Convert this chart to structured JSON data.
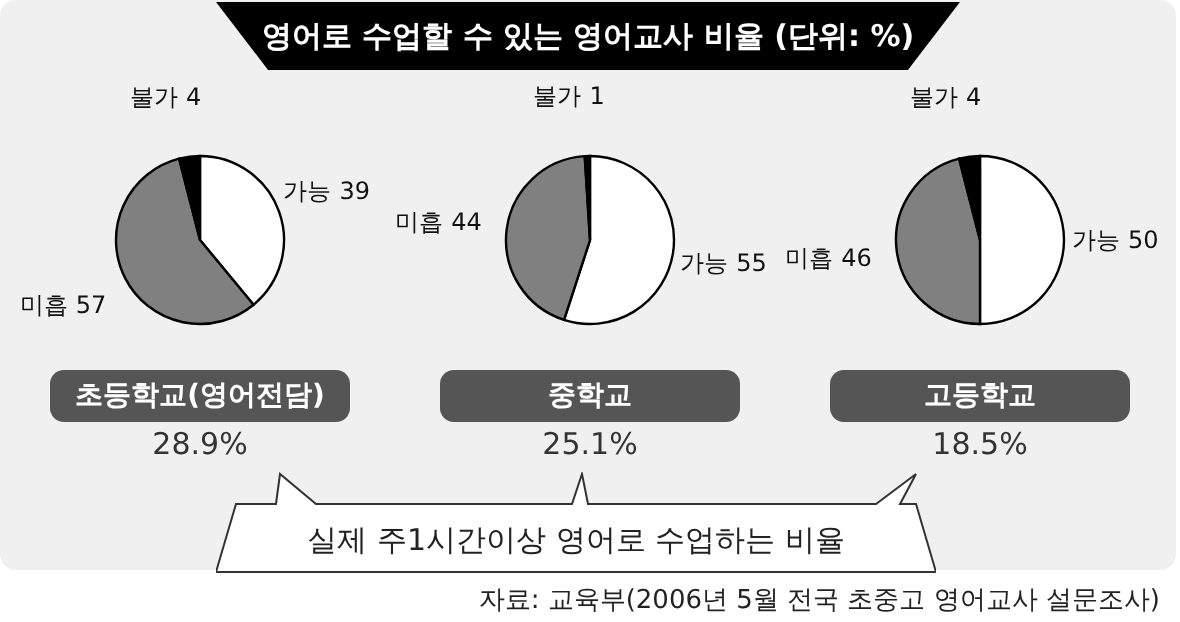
{
  "chart_data": [
    {
      "type": "other",
      "title": "영어로 수업할 수 있는 영어교사 비율 (단위: %)",
      "annotations": [
        "실제 주1시간이상 영어로 수업하는 비율",
        "자료: 교육부(2006년 5월 전국 초중고 영어교사 설문조사)"
      ]
    },
    {
      "type": "pie",
      "subtitle": "초등학교(영어전담)",
      "categories": [
        "가능",
        "미흡",
        "불가"
      ],
      "values": [
        39,
        57,
        4
      ],
      "colors": [
        "#ffffff",
        "#808080",
        "#000000"
      ],
      "data_labels": true,
      "annotations": [
        "28.9%"
      ]
    },
    {
      "type": "pie",
      "subtitle": "중학교",
      "categories": [
        "가능",
        "미흡",
        "불가"
      ],
      "values": [
        55,
        44,
        1
      ],
      "colors": [
        "#ffffff",
        "#808080",
        "#000000"
      ],
      "data_labels": true,
      "annotations": [
        "25.1%"
      ]
    },
    {
      "type": "pie",
      "subtitle": "고등학교",
      "categories": [
        "가능",
        "미흡",
        "불가"
      ],
      "values": [
        50,
        46,
        4
      ],
      "colors": [
        "#ffffff",
        "#808080",
        "#000000"
      ],
      "data_labels": true,
      "annotations": [
        "18.5%"
      ]
    }
  ]
}
